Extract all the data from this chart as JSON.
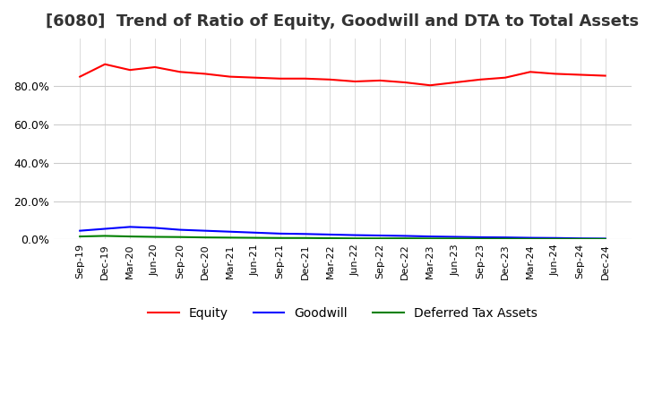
{
  "title": "[6080]  Trend of Ratio of Equity, Goodwill and DTA to Total Assets",
  "title_fontsize": 13,
  "xlabel": "",
  "ylabel": "",
  "ylim": [
    0,
    105
  ],
  "yticks": [
    0,
    20,
    40,
    60,
    80
  ],
  "background_color": "#ffffff",
  "grid_color": "#cccccc",
  "x_labels": [
    "Sep-19",
    "Dec-19",
    "Mar-20",
    "Jun-20",
    "Sep-20",
    "Dec-20",
    "Mar-21",
    "Jun-21",
    "Sep-21",
    "Dec-21",
    "Mar-22",
    "Jun-22",
    "Sep-22",
    "Dec-22",
    "Mar-23",
    "Jun-23",
    "Sep-23",
    "Dec-23",
    "Mar-24",
    "Jun-24",
    "Sep-24",
    "Dec-24"
  ],
  "equity": [
    85.0,
    91.5,
    88.5,
    90.0,
    87.5,
    86.5,
    85.0,
    84.5,
    84.0,
    84.0,
    83.5,
    82.5,
    83.0,
    82.0,
    80.5,
    82.0,
    83.5,
    84.5,
    87.5,
    86.5,
    86.0,
    85.5
  ],
  "goodwill": [
    4.5,
    5.5,
    6.5,
    6.0,
    5.0,
    4.5,
    4.0,
    3.5,
    3.0,
    2.8,
    2.5,
    2.2,
    2.0,
    1.8,
    1.5,
    1.3,
    1.1,
    1.0,
    0.8,
    0.7,
    0.5,
    0.4
  ],
  "dta": [
    1.5,
    1.8,
    1.5,
    1.3,
    1.2,
    1.0,
    0.9,
    0.8,
    0.7,
    0.7,
    0.6,
    0.5,
    0.5,
    0.5,
    0.4,
    0.4,
    0.3,
    0.3,
    0.2,
    0.2,
    0.2,
    0.2
  ],
  "equity_color": "#ff0000",
  "goodwill_color": "#0000ff",
  "dta_color": "#008000",
  "line_width": 1.5
}
